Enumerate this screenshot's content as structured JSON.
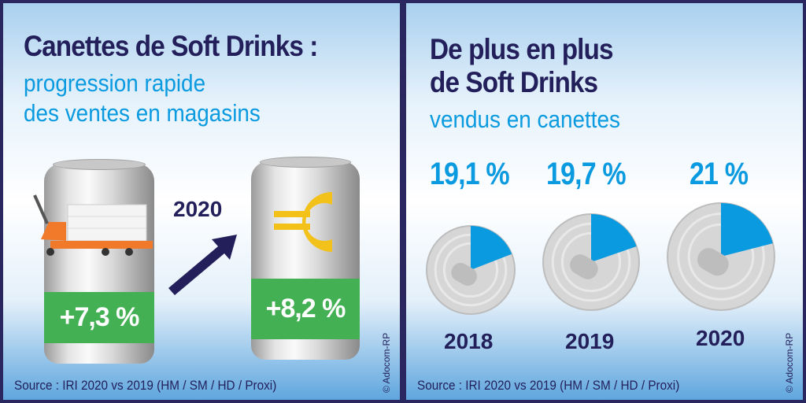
{
  "left": {
    "title": "Canettes de Soft Drinks :",
    "subtitle_line1": "progression rapide",
    "subtitle_line2": "des ventes en magasins",
    "year": "2020",
    "can_volume": {
      "value": "+7,3 %",
      "icon": "pallet-truck-icon"
    },
    "can_value": {
      "value": "+8,2 %",
      "icon": "euro-icon"
    },
    "source": "Source : IRI 2020 vs 2019 (HM / SM / HD / Proxi)",
    "copyright": "© Adocom-RP"
  },
  "right": {
    "title_line1": "De plus en plus",
    "title_line2": "de Soft Drinks",
    "subtitle": "vendus en canettes",
    "items": [
      {
        "year": "2018",
        "label": "19,1 %",
        "share": 19.1
      },
      {
        "year": "2019",
        "label": "19,7 %",
        "share": 19.7
      },
      {
        "year": "2020",
        "label": "21 %",
        "share": 21
      }
    ],
    "source": "Source : IRI 2020 vs 2019 (HM / SM / HD / Proxi)",
    "copyright": "© Adocom-RP"
  },
  "colors": {
    "navy": "#221f5a",
    "blue": "#0a9ae0",
    "green": "#44b054",
    "gold": "#f2c21b",
    "orange": "#f07a2a"
  }
}
